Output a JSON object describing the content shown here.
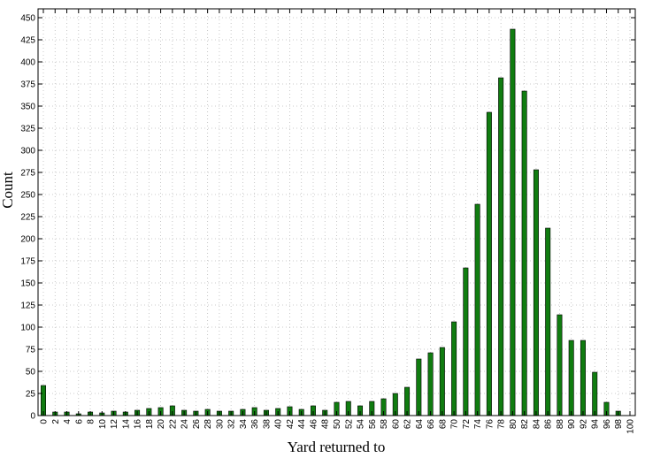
{
  "chart_data": {
    "type": "bar",
    "title": "",
    "xlabel": "Yard returned to",
    "ylabel": "Count",
    "xlim": [
      0,
      100
    ],
    "ylim": [
      0,
      460
    ],
    "xticks": [
      0,
      2,
      4,
      6,
      8,
      10,
      12,
      14,
      16,
      18,
      20,
      22,
      24,
      26,
      28,
      30,
      32,
      34,
      36,
      38,
      40,
      42,
      44,
      46,
      48,
      50,
      52,
      54,
      56,
      58,
      60,
      62,
      64,
      66,
      68,
      70,
      72,
      74,
      76,
      78,
      80,
      82,
      84,
      86,
      88,
      90,
      92,
      94,
      96,
      98,
      100
    ],
    "yticks": [
      0,
      25,
      50,
      75,
      100,
      125,
      150,
      175,
      200,
      225,
      250,
      275,
      300,
      325,
      350,
      375,
      400,
      425,
      450
    ],
    "grid": true,
    "bar_color": "#107c10",
    "x": [
      0,
      2,
      4,
      6,
      8,
      10,
      12,
      14,
      16,
      18,
      20,
      22,
      24,
      26,
      28,
      30,
      32,
      34,
      36,
      38,
      40,
      42,
      44,
      46,
      48,
      50,
      52,
      54,
      56,
      58,
      60,
      62,
      64,
      66,
      68,
      70,
      72,
      74,
      76,
      78,
      80,
      82,
      84,
      86,
      88,
      90,
      92,
      94,
      96,
      98
    ],
    "values": [
      34,
      4,
      4,
      2,
      4,
      3,
      5,
      4,
      6,
      8,
      9,
      11,
      6,
      5,
      7,
      5,
      5,
      7,
      9,
      6,
      8,
      10,
      7,
      11,
      6,
      15,
      16,
      11,
      16,
      19,
      25,
      32,
      64,
      71,
      77,
      106,
      167,
      239,
      343,
      382,
      437,
      367,
      278,
      212,
      114,
      85,
      85,
      49,
      15,
      5
    ]
  }
}
